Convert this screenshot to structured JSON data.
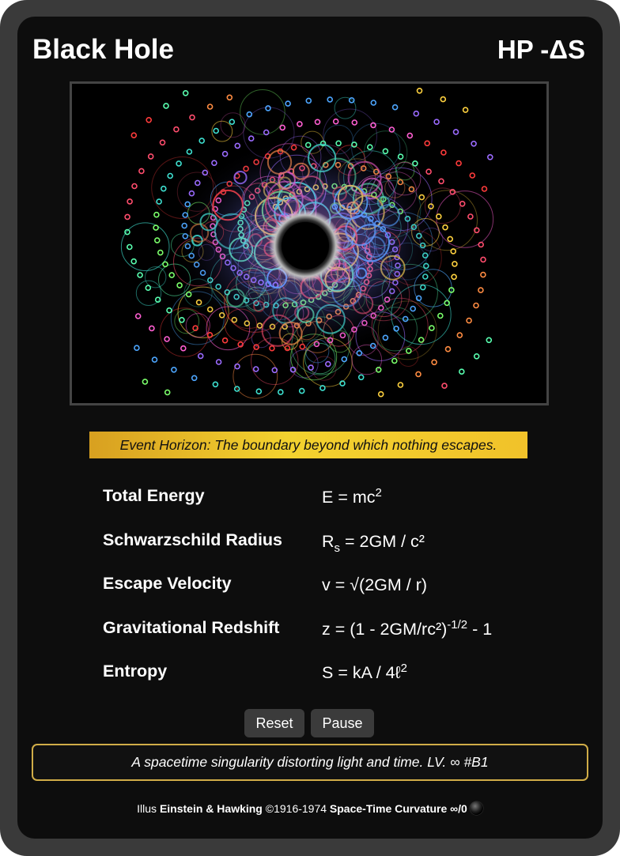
{
  "card": {
    "name": "Black Hole",
    "hp": "HP -ΔS",
    "flavor": "Event Horizon: The boundary beyond which nothing escapes.",
    "stats": [
      {
        "label": "Total Energy",
        "formula_main": "E = mc",
        "formula_sup": "2"
      },
      {
        "label": "Schwarzschild Radius",
        "formula_pre": "R",
        "formula_sub": "s",
        "formula_post": " = 2GM / c²"
      },
      {
        "label": "Escape Velocity",
        "formula_main": "v = √(2GM / r)"
      },
      {
        "label": "Gravitational Redshift",
        "formula_pre": "z = (1 - 2GM/rc²)",
        "formula_sup": "-1/2",
        "formula_post": " - 1"
      },
      {
        "label": "Entropy",
        "formula_main": "S = kA / 4ℓ",
        "formula_sup": "2"
      }
    ],
    "buttons": {
      "reset": "Reset",
      "pause": "Pause"
    },
    "rules": "A spacetime singularity distorting light and time. LV. ∞ #B1",
    "credits": {
      "prefix": "Illus ",
      "artists": "Einstein & Hawking",
      "years": " ©1916-1974 ",
      "set": "Space-Time Curvature ∞/0"
    }
  },
  "colors": {
    "card_background": "#0d0d0d",
    "frame": "#3a3a3a",
    "flavor_gold": "#f3d22f",
    "rules_border": "#d1ad48"
  }
}
